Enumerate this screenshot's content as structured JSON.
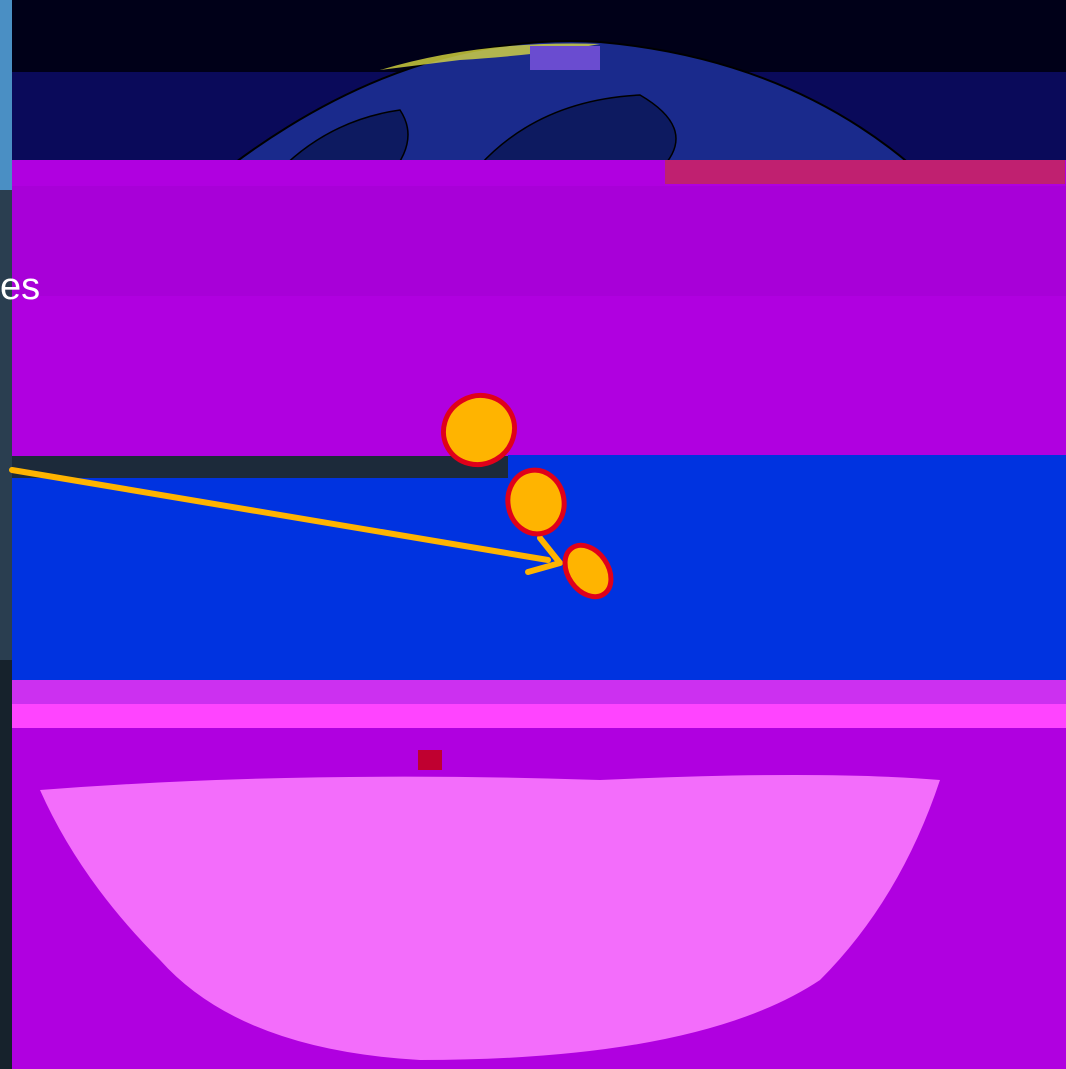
{
  "slide": {
    "partial_text": "es",
    "colors": {
      "marker_fill": "#ffb400",
      "marker_stroke": "#e0001a",
      "arrow": "#ffb400",
      "ocean_blue": "#0033e0",
      "magenta": "#b000e0",
      "pink": "#ff66ff",
      "space": "#000018",
      "earth_navy": "#0a0a5a"
    },
    "icons": {
      "markers": "ellipse-marker",
      "arrow": "arrow-icon"
    }
  }
}
